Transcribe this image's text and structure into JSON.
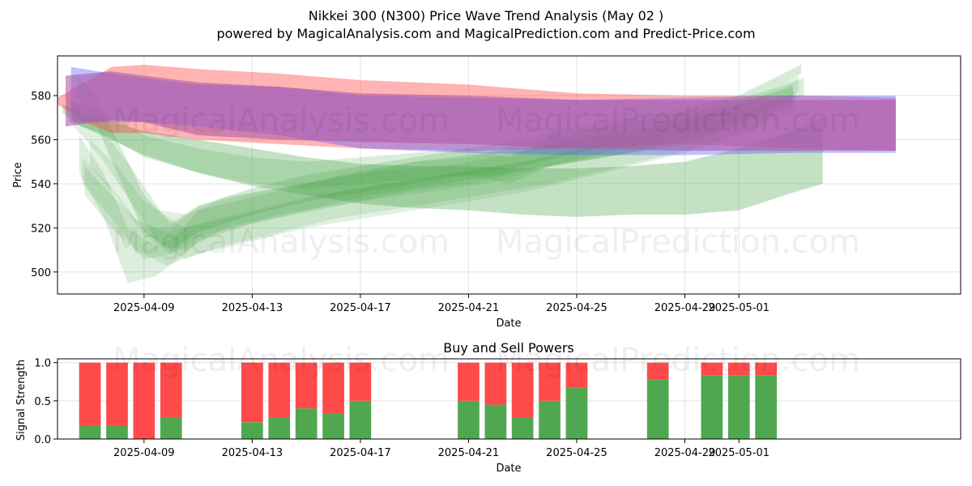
{
  "title_line1": "Nikkei 300 (N300) Price Wave Trend Analysis (May 02 )",
  "title_line2": "powered by MagicalAnalysis.com and MagicalPrediction.com and Predict-Price.com",
  "watermarks": [
    "MagicalAnalysis.com",
    "MagicalPrediction.com"
  ],
  "colors": {
    "red": "#ff4040",
    "green": "#46a346",
    "blue": "#6060ff",
    "purple": "#b05aa6",
    "grid": "#b0b0b0"
  },
  "chart_data": [
    {
      "type": "area",
      "title": "Nikkei 300 (N300) Price Wave Trend Analysis (May 02 )",
      "xlabel": "Date",
      "ylabel": "Price",
      "xlim": [
        -3.2,
        30.2
      ],
      "ylim": [
        490,
        598
      ],
      "grid": true,
      "x_ticks": [
        {
          "x": 0,
          "label": "2025-04-09"
        },
        {
          "x": 4,
          "label": "2025-04-13"
        },
        {
          "x": 8,
          "label": "2025-04-17"
        },
        {
          "x": 12,
          "label": "2025-04-21"
        },
        {
          "x": 16,
          "label": "2025-04-25"
        },
        {
          "x": 20,
          "label": "2025-04-29"
        },
        {
          "x": 22,
          "label": "2025-05-01"
        }
      ],
      "y_ticks": [
        500,
        520,
        540,
        560,
        580
      ],
      "bands": [
        {
          "name": "red wave",
          "color": "red",
          "opacity": 0.4,
          "x": [
            -3.2,
            -2.2,
            -1.2,
            0,
            2,
            5,
            8,
            12,
            16,
            20,
            24,
            27.8
          ],
          "upper": [
            579,
            586,
            593,
            594,
            592,
            590,
            587,
            585,
            581,
            580,
            580,
            579
          ],
          "lower": [
            576,
            568,
            563,
            563,
            560,
            558,
            556,
            555,
            556,
            558,
            556,
            555
          ]
        },
        {
          "name": "blue wave",
          "color": "blue",
          "opacity": 0.4,
          "x": [
            -2.7,
            -1.2,
            0,
            2,
            5,
            8,
            12,
            16,
            20,
            24,
            27.8
          ],
          "upper": [
            593,
            590,
            588,
            585,
            584,
            580,
            579,
            578,
            579,
            580,
            580
          ],
          "lower": [
            568,
            568,
            568,
            566,
            562,
            556,
            554,
            553,
            553,
            554,
            554
          ]
        },
        {
          "name": "purple wave",
          "color": "purple",
          "opacity": 0.6,
          "x": [
            -2.9,
            -1.2,
            0,
            2,
            5,
            8,
            12,
            16,
            20,
            24,
            27.8
          ],
          "upper": [
            589,
            591,
            589,
            586,
            584,
            581,
            580,
            578,
            578,
            578,
            578
          ],
          "lower": [
            566,
            569,
            568,
            562,
            560,
            559,
            558,
            556,
            555,
            555,
            555
          ]
        }
      ],
      "green_bands": [
        {
          "x": [
            -3.0,
            -2.3,
            -1.2,
            0,
            2,
            4,
            6,
            8,
            10,
            12,
            14,
            16,
            18,
            20,
            22,
            24,
            25.1
          ],
          "upper": [
            576,
            572,
            568,
            564,
            560,
            556,
            552,
            549,
            548,
            548,
            547,
            547,
            548,
            550,
            556,
            564,
            570
          ],
          "lower": [
            572,
            566,
            560,
            553,
            545,
            539,
            535,
            531,
            529,
            528,
            526,
            525,
            526,
            526,
            528,
            536,
            540
          ],
          "opacity": 0.32
        },
        {
          "x": [
            -2.5,
            -1.8,
            -1,
            0,
            1,
            2,
            4,
            6,
            8,
            10,
            12,
            14,
            16,
            18,
            20,
            22,
            24.3
          ],
          "upper": [
            590,
            580,
            560,
            535,
            522,
            530,
            538,
            544,
            548,
            552,
            556,
            560,
            566,
            570,
            574,
            580,
            594
          ],
          "lower": [
            580,
            568,
            545,
            518,
            510,
            518,
            526,
            532,
            536,
            540,
            544,
            548,
            554,
            560,
            566,
            572,
            590
          ],
          "opacity": 0.22
        },
        {
          "x": [
            -2.4,
            -1.5,
            -0.6,
            0.4,
            1.2,
            2,
            4,
            6,
            8,
            10,
            12,
            14,
            16,
            18,
            20,
            22,
            24
          ],
          "upper": [
            562,
            545,
            520,
            512,
            516,
            528,
            534,
            540,
            546,
            550,
            553,
            556,
            560,
            564,
            568,
            576,
            585
          ],
          "lower": [
            545,
            525,
            495,
            498,
            505,
            514,
            522,
            528,
            534,
            538,
            542,
            546,
            550,
            554,
            560,
            568,
            578
          ],
          "opacity": 0.18
        },
        {
          "x": [
            -2.2,
            -1.2,
            0,
            1,
            2,
            4,
            6,
            8,
            10,
            12,
            14,
            16,
            18,
            20,
            22,
            24
          ],
          "upper": [
            548,
            535,
            520,
            520,
            530,
            536,
            540,
            545,
            550,
            552,
            558,
            562,
            565,
            570,
            576,
            584
          ],
          "lower": [
            535,
            520,
            506,
            508,
            516,
            522,
            527,
            532,
            537,
            540,
            546,
            550,
            554,
            558,
            566,
            576
          ],
          "opacity": 0.17
        },
        {
          "x": [
            -2.6,
            -1.6,
            -0.5,
            0.6,
            1.6,
            3,
            5,
            7,
            9,
            11,
            13,
            15,
            17,
            19,
            21,
            23,
            24.2
          ],
          "upper": [
            578,
            565,
            548,
            528,
            526,
            534,
            538,
            543,
            546,
            548,
            552,
            558,
            562,
            566,
            572,
            580,
            589
          ],
          "lower": [
            566,
            552,
            532,
            512,
            510,
            520,
            526,
            530,
            534,
            537,
            541,
            548,
            552,
            556,
            562,
            572,
            582
          ],
          "opacity": 0.17
        },
        {
          "x": [
            -2.0,
            -1.0,
            0,
            1.5,
            3,
            5,
            7,
            9,
            11,
            13,
            15,
            17,
            19,
            21,
            23,
            24.1
          ],
          "upper": [
            560,
            548,
            532,
            520,
            524,
            530,
            536,
            540,
            544,
            548,
            552,
            558,
            562,
            568,
            576,
            582
          ],
          "lower": [
            548,
            534,
            516,
            506,
            512,
            518,
            524,
            528,
            532,
            536,
            540,
            546,
            552,
            558,
            568,
            575
          ],
          "opacity": 0.15
        },
        {
          "x": [
            -2.8,
            -1.4,
            0,
            2,
            4,
            6,
            8,
            10,
            12,
            13.5,
            15,
            17,
            19,
            21,
            23,
            24.4
          ],
          "upper": [
            578,
            572,
            562,
            556,
            552,
            550,
            552,
            554,
            556,
            552,
            560,
            566,
            570,
            575,
            582,
            588
          ],
          "lower": [
            568,
            562,
            552,
            545,
            540,
            538,
            540,
            542,
            544,
            540,
            548,
            554,
            560,
            566,
            574,
            580
          ],
          "opacity": 0.2
        },
        {
          "x": [
            -2.3,
            -1.3,
            -0.3,
            0.8,
            2,
            4,
            6,
            8,
            10,
            12,
            14,
            16,
            18,
            20,
            22,
            24
          ],
          "upper": [
            552,
            540,
            524,
            518,
            522,
            528,
            534,
            538,
            542,
            546,
            550,
            556,
            560,
            566,
            572,
            580
          ],
          "lower": [
            540,
            526,
            510,
            503,
            508,
            514,
            520,
            524,
            528,
            532,
            536,
            542,
            548,
            554,
            562,
            572
          ],
          "opacity": 0.15
        }
      ]
    },
    {
      "type": "bar",
      "title": "Buy and Sell Powers",
      "xlabel": "Date",
      "ylabel": "Signal Strength",
      "xlim": [
        -3.2,
        30.2
      ],
      "ylim": [
        0,
        1.05
      ],
      "grid": true,
      "x_ticks": [
        {
          "x": 0,
          "label": "2025-04-09"
        },
        {
          "x": 4,
          "label": "2025-04-13"
        },
        {
          "x": 8,
          "label": "2025-04-17"
        },
        {
          "x": 12,
          "label": "2025-04-21"
        },
        {
          "x": 16,
          "label": "2025-04-25"
        },
        {
          "x": 20,
          "label": "2025-04-29"
        },
        {
          "x": 22,
          "label": "2025-05-01"
        }
      ],
      "y_ticks": [
        {
          "v": 0,
          "label": "0.0"
        },
        {
          "v": 0.5,
          "label": "0.5"
        },
        {
          "v": 1,
          "label": "1.0"
        }
      ],
      "series": [
        {
          "name": "Buy",
          "color": "green"
        },
        {
          "name": "Sell",
          "color": "red"
        }
      ],
      "x": [
        -2,
        -1,
        0,
        1,
        4,
        5,
        6,
        7,
        8,
        12,
        13,
        14,
        15,
        16,
        19,
        21,
        22,
        23
      ],
      "buy": [
        0.17,
        0.17,
        0.0,
        0.28,
        0.22,
        0.28,
        0.4,
        0.33,
        0.5,
        0.5,
        0.45,
        0.28,
        0.5,
        0.67,
        0.78,
        0.83,
        0.83,
        0.83
      ],
      "sell": [
        0.83,
        0.83,
        1.0,
        0.72,
        0.78,
        0.72,
        0.6,
        0.67,
        0.5,
        0.5,
        0.55,
        0.72,
        0.5,
        0.33,
        0.22,
        0.17,
        0.17,
        0.17
      ]
    }
  ]
}
